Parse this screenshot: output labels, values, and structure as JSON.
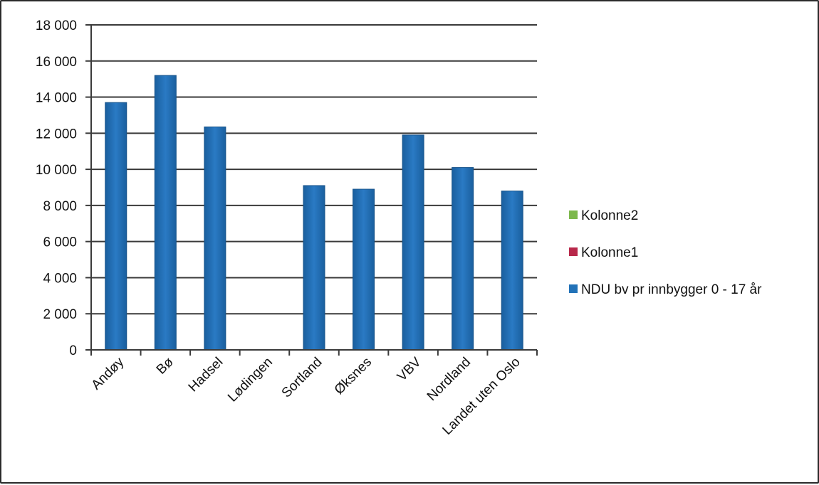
{
  "chart_data": {
    "type": "bar",
    "title": "",
    "xlabel": "",
    "ylabel": "",
    "ylim": [
      0,
      18000
    ],
    "yticks": [
      0,
      2000,
      4000,
      6000,
      8000,
      10000,
      12000,
      14000,
      16000,
      18000
    ],
    "ytick_labels": [
      "0",
      "2 000",
      "4 000",
      "6 000",
      "8 000",
      "10 000",
      "12 000",
      "14 000",
      "16 000",
      "18 000"
    ],
    "grid": true,
    "legend_position": "right",
    "categories": [
      "Andøy",
      "Bø",
      "Hadsel",
      "Lødingen",
      "Sortland",
      "Øksnes",
      "VBV",
      "Nordland",
      "Landet uten Oslo"
    ],
    "series": [
      {
        "name": "NDU bv pr innbygger 0 - 17 år",
        "color": "#2272b8",
        "values": [
          13700,
          15200,
          12350,
          null,
          9100,
          8900,
          11900,
          10100,
          8800
        ]
      },
      {
        "name": "Kolonne1",
        "color": "#b8284a",
        "values": [
          null,
          null,
          null,
          null,
          null,
          null,
          null,
          null,
          null
        ]
      },
      {
        "name": "Kolonne2",
        "color": "#7db84c",
        "values": [
          null,
          null,
          null,
          null,
          null,
          null,
          null,
          null,
          null
        ]
      }
    ],
    "legend_order": [
      "Kolonne2",
      "Kolonne1",
      "NDU bv pr innbygger 0 - 17 år"
    ]
  }
}
